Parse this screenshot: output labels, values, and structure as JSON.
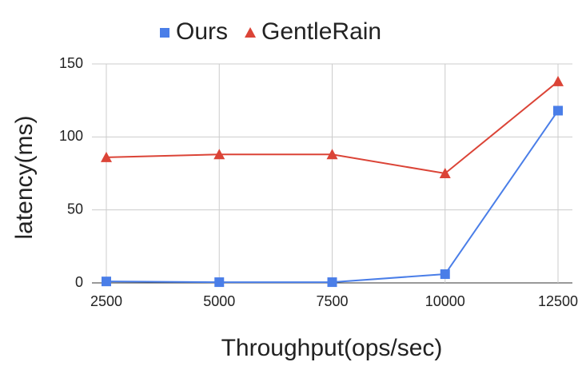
{
  "chart_data": {
    "type": "line",
    "x_label": "Throughput(ops/sec)",
    "y_label": "latency(ms)",
    "x": [
      2500,
      5000,
      7500,
      10000,
      12500
    ],
    "series": [
      {
        "name": "Ours",
        "color": "#4a7ee8",
        "marker": "square",
        "values": [
          1,
          0.5,
          0.5,
          6,
          118
        ]
      },
      {
        "name": "GentleRain",
        "color": "#db4437",
        "marker": "triangle",
        "values": [
          86,
          88,
          88,
          75,
          138
        ]
      }
    ],
    "xlim": [
      2500,
      12500
    ],
    "xticks": [
      2500,
      5000,
      7500,
      10000,
      12500
    ],
    "ylim": [
      0,
      150
    ],
    "yticks": [
      0,
      50,
      100,
      150
    ],
    "grid": true,
    "legend": "top"
  }
}
